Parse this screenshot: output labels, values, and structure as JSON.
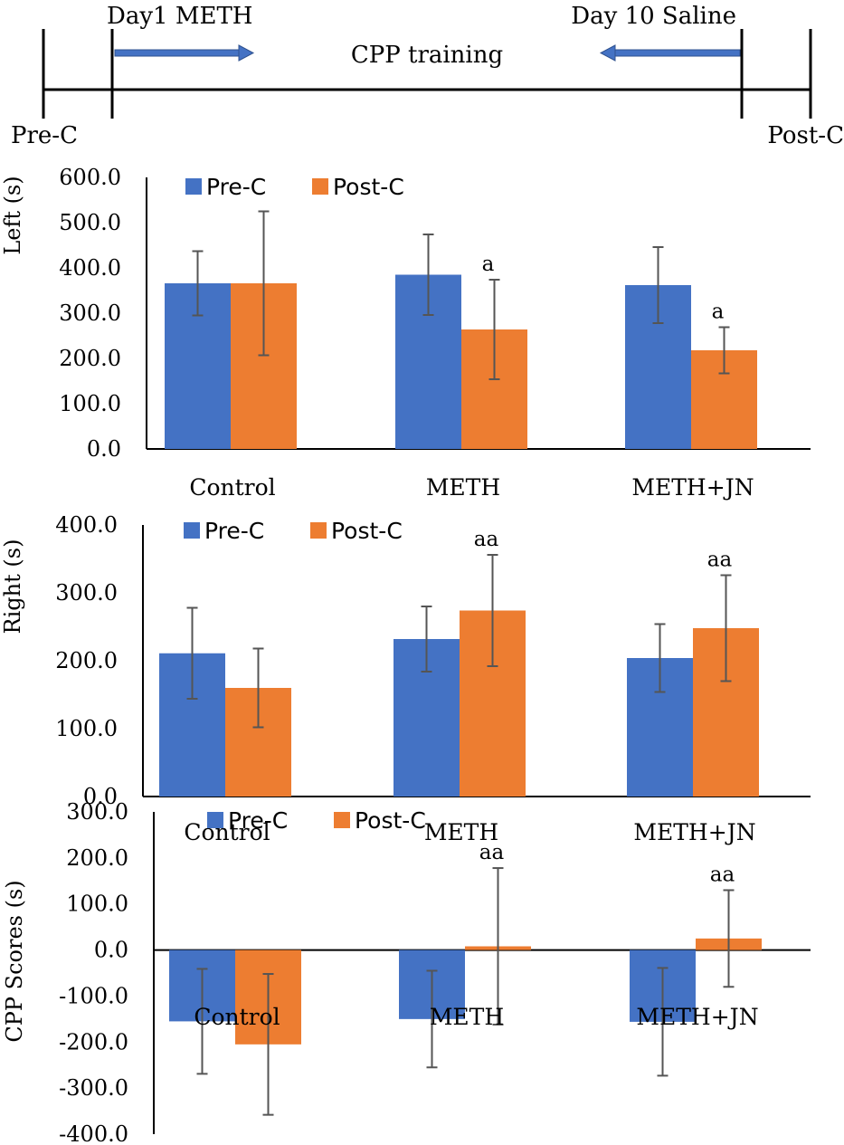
{
  "timeline": {
    "start_label": "Day1 METH",
    "end_label": "Day 10 Saline",
    "center_label": "CPP training",
    "left_label": "Pre-C",
    "right_label": "Post-C"
  },
  "colors": {
    "pre": "#4472C4",
    "post": "#ED7D31",
    "error": "#555555",
    "arrow": "#4472C4"
  },
  "chart_data": [
    {
      "type": "bar",
      "title": "",
      "xlabel": "",
      "ylabel": "Left (s)",
      "ylim": [
        0,
        600
      ],
      "yticks": [
        "0.0",
        "100.0",
        "200.0",
        "300.0",
        "400.0",
        "500.0",
        "600.0"
      ],
      "categories": [
        "Control",
        "METH",
        "METH+JN"
      ],
      "legend": "top-left",
      "series": [
        {
          "name": "Pre-C",
          "values": [
            366,
            385,
            362
          ],
          "errors": [
            71,
            89,
            84
          ]
        },
        {
          "name": "Post-C",
          "values": [
            366,
            264,
            218
          ],
          "errors": [
            159,
            110,
            51
          ]
        }
      ],
      "annotations": [
        "",
        "a",
        "a"
      ]
    },
    {
      "type": "bar",
      "title": "",
      "xlabel": "",
      "ylabel": "Right (s)",
      "ylim": [
        0,
        400
      ],
      "yticks": [
        "0.0",
        "100.0",
        "200.0",
        "300.0",
        "400.0"
      ],
      "categories": [
        "Control",
        "METH",
        "METH+JN"
      ],
      "legend": "top-left",
      "series": [
        {
          "name": "Pre-C",
          "values": [
            211,
            232,
            204
          ],
          "errors": [
            67,
            48,
            50
          ]
        },
        {
          "name": "Post-C",
          "values": [
            160,
            274,
            248
          ],
          "errors": [
            58,
            82,
            78
          ]
        }
      ],
      "annotations": [
        "",
        "aa",
        "aa"
      ]
    },
    {
      "type": "bar",
      "title": "",
      "xlabel": "",
      "ylabel": "CPP Scores (s)",
      "ylim": [
        -400,
        300
      ],
      "yticks": [
        "-400.0",
        "-300.0",
        "-200.0",
        "-100.0",
        "0.0",
        "100.0",
        "200.0",
        "300.0"
      ],
      "categories": [
        "Control",
        "METH",
        "METH+JN"
      ],
      "legend": "top-left",
      "series": [
        {
          "name": "Pre-C",
          "values": [
            -155,
            -150,
            -156
          ],
          "errors": [
            114,
            105,
            117
          ]
        },
        {
          "name": "Post-C",
          "values": [
            -205,
            8,
            25
          ],
          "errors": [
            153,
            170,
            105
          ]
        }
      ],
      "annotations": [
        "",
        "aa",
        "aa"
      ]
    }
  ]
}
